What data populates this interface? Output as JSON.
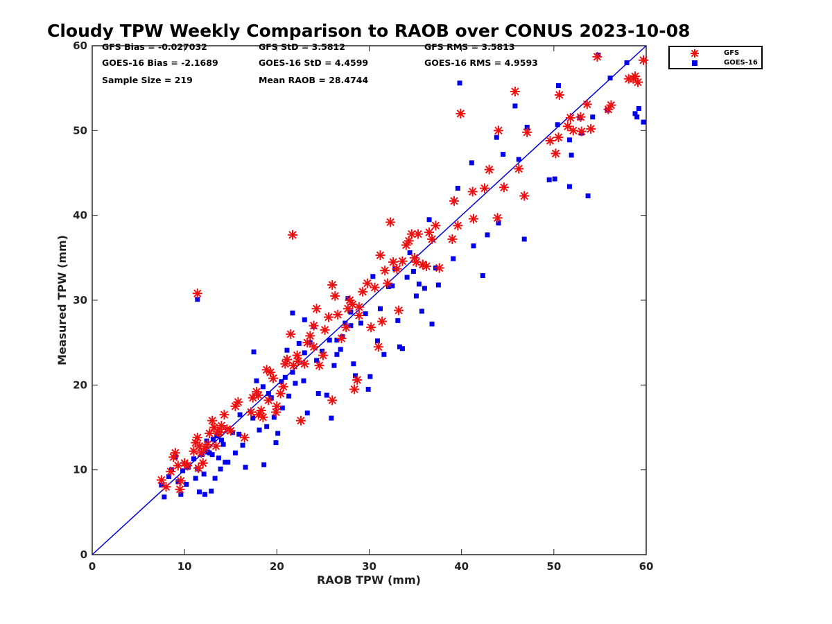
{
  "chart_data": {
    "type": "scatter",
    "title": "Cloudy TPW Weekly Comparison to RAOB over CONUS 2023-10-08",
    "xlabel": "RAOB TPW (mm)",
    "ylabel": "Measured TPW (mm)",
    "xlim": [
      0,
      60
    ],
    "ylim": [
      0,
      60
    ],
    "xticks": [
      0,
      10,
      20,
      30,
      40,
      50,
      60
    ],
    "yticks": [
      0,
      10,
      20,
      30,
      40,
      50,
      60
    ],
    "grid": false,
    "legend_position": "top-right outside",
    "reference_line": {
      "x": [
        0,
        60
      ],
      "y": [
        0,
        60
      ],
      "color": "#0000cc"
    },
    "stats": {
      "gfs_bias": "GFS Bias = -0.027032",
      "goes_bias": "GOES-16 Bias = -2.1689",
      "sample_size": "Sample Size = 219",
      "gfs_std": "GFS StD = 3.5812",
      "goes_std": "GOES-16 StD = 4.4599",
      "mean_raob": "Mean RAOB = 28.4744",
      "gfs_rms": "GFS RMS = 3.5813",
      "goes_rms": "GOES-16 RMS = 4.9593"
    },
    "series": [
      {
        "name": "GFS",
        "marker": "asterisk",
        "color": "#ee1111",
        "points": [
          [
            7.5,
            8.8
          ],
          [
            8.0,
            8.0
          ],
          [
            8.5,
            9.8
          ],
          [
            8.8,
            11.5
          ],
          [
            9.0,
            12.0
          ],
          [
            9.3,
            10.5
          ],
          [
            9.5,
            7.7
          ],
          [
            9.6,
            8.7
          ],
          [
            10.0,
            10.8
          ],
          [
            10.3,
            10.5
          ],
          [
            11.0,
            12.2
          ],
          [
            11.2,
            13.2
          ],
          [
            11.4,
            13.8
          ],
          [
            11.5,
            10.2
          ],
          [
            11.6,
            12.8
          ],
          [
            11.8,
            12.0
          ],
          [
            12.0,
            10.8
          ],
          [
            12.2,
            12.5
          ],
          [
            12.5,
            13.0
          ],
          [
            12.7,
            14.3
          ],
          [
            13.0,
            15.8
          ],
          [
            13.2,
            15.0
          ],
          [
            13.4,
            12.8
          ],
          [
            13.6,
            14.5
          ],
          [
            14.0,
            15.2
          ],
          [
            14.3,
            16.5
          ],
          [
            14.6,
            14.8
          ],
          [
            15.0,
            14.6
          ],
          [
            15.5,
            17.5
          ],
          [
            15.8,
            18.0
          ],
          [
            16.5,
            13.8
          ],
          [
            17.2,
            16.8
          ],
          [
            17.4,
            18.5
          ],
          [
            17.8,
            19.2
          ],
          [
            18.0,
            16.5
          ],
          [
            18.3,
            17.0
          ],
          [
            18.5,
            16.2
          ],
          [
            18.9,
            21.8
          ],
          [
            19.1,
            18.2
          ],
          [
            19.3,
            21.5
          ],
          [
            19.6,
            20.8
          ],
          [
            19.9,
            16.8
          ],
          [
            20.0,
            17.5
          ],
          [
            20.4,
            19.0
          ],
          [
            20.7,
            19.8
          ],
          [
            20.9,
            22.5
          ],
          [
            21.1,
            23.0
          ],
          [
            21.5,
            26.0
          ],
          [
            21.8,
            22.3
          ],
          [
            22.2,
            23.5
          ],
          [
            22.6,
            15.8
          ],
          [
            23.0,
            22.5
          ],
          [
            23.3,
            25.0
          ],
          [
            23.6,
            25.8
          ],
          [
            24.0,
            27.0
          ],
          [
            24.3,
            29.0
          ],
          [
            24.6,
            22.3
          ],
          [
            25.0,
            23.5
          ],
          [
            25.2,
            26.5
          ],
          [
            25.6,
            28.0
          ],
          [
            26.0,
            31.8
          ],
          [
            26.3,
            30.5
          ],
          [
            26.0,
            18.2
          ],
          [
            26.6,
            28.3
          ],
          [
            27.0,
            25.5
          ],
          [
            27.5,
            26.8
          ],
          [
            27.7,
            29.0
          ],
          [
            27.9,
            30.0
          ],
          [
            28.2,
            29.5
          ],
          [
            28.4,
            19.5
          ],
          [
            28.7,
            20.6
          ],
          [
            28.9,
            28.2
          ],
          [
            29.3,
            31.0
          ],
          [
            29.8,
            32.0
          ],
          [
            30.2,
            26.8
          ],
          [
            30.6,
            31.5
          ],
          [
            31.0,
            24.5
          ],
          [
            31.2,
            35.3
          ],
          [
            31.4,
            27.5
          ],
          [
            31.7,
            33.5
          ],
          [
            32.0,
            32.0
          ],
          [
            32.3,
            39.2
          ],
          [
            32.6,
            34.5
          ],
          [
            33.0,
            33.7
          ],
          [
            33.2,
            28.8
          ],
          [
            33.6,
            34.6
          ],
          [
            34.0,
            36.5
          ],
          [
            34.3,
            37.0
          ],
          [
            34.6,
            37.8
          ],
          [
            34.9,
            35.0
          ],
          [
            35.1,
            34.5
          ],
          [
            35.3,
            37.8
          ],
          [
            35.8,
            34.2
          ],
          [
            36.2,
            34.0
          ],
          [
            36.5,
            38.0
          ],
          [
            36.8,
            37.2
          ],
          [
            37.2,
            38.8
          ],
          [
            37.6,
            33.8
          ],
          [
            39.0,
            37.2
          ],
          [
            39.2,
            41.7
          ],
          [
            39.6,
            38.8
          ],
          [
            39.9,
            52.0
          ],
          [
            41.2,
            42.8
          ],
          [
            41.3,
            39.6
          ],
          [
            42.5,
            43.2
          ],
          [
            43.0,
            45.4
          ],
          [
            43.9,
            39.7
          ],
          [
            44.0,
            50.0
          ],
          [
            44.6,
            43.3
          ],
          [
            45.8,
            54.6
          ],
          [
            46.2,
            45.5
          ],
          [
            46.8,
            42.3
          ],
          [
            47.1,
            49.8
          ],
          [
            49.6,
            48.8
          ],
          [
            50.2,
            47.3
          ],
          [
            50.5,
            49.2
          ],
          [
            50.6,
            54.2
          ],
          [
            51.5,
            50.5
          ],
          [
            51.8,
            51.5
          ],
          [
            52.1,
            50.0
          ],
          [
            52.9,
            51.6
          ],
          [
            53.0,
            49.9
          ],
          [
            53.6,
            53.1
          ],
          [
            54.0,
            50.2
          ],
          [
            54.7,
            58.7
          ],
          [
            55.9,
            52.5
          ],
          [
            56.2,
            53.0
          ],
          [
            58.1,
            56.1
          ],
          [
            58.6,
            56.1
          ],
          [
            58.8,
            56.4
          ],
          [
            59.1,
            55.7
          ],
          [
            59.7,
            58.3
          ],
          [
            11.4,
            30.8
          ],
          [
            21.7,
            37.7
          ],
          [
            35.8,
            34.2
          ],
          [
            28.9,
            29.2
          ],
          [
            22.3,
            22.8
          ],
          [
            24.0,
            24.5
          ],
          [
            18.0,
            18.8
          ],
          [
            13.8,
            14.4
          ]
        ]
      },
      {
        "name": "GOES-16",
        "marker": "square",
        "color": "#0000ee",
        "points": [
          [
            7.5,
            8.2
          ],
          [
            7.8,
            6.8
          ],
          [
            8.3,
            9.2
          ],
          [
            8.6,
            10.0
          ],
          [
            9.0,
            11.5
          ],
          [
            9.3,
            8.6
          ],
          [
            9.6,
            7.1
          ],
          [
            9.8,
            9.9
          ],
          [
            10.2,
            8.3
          ],
          [
            10.4,
            10.3
          ],
          [
            11.0,
            11.3
          ],
          [
            11.2,
            9.0
          ],
          [
            11.4,
            10.1
          ],
          [
            11.6,
            7.4
          ],
          [
            11.9,
            11.8
          ],
          [
            12.1,
            9.5
          ],
          [
            12.2,
            7.1
          ],
          [
            12.4,
            13.4
          ],
          [
            12.7,
            12.0
          ],
          [
            12.9,
            7.5
          ],
          [
            13.1,
            13.6
          ],
          [
            13.3,
            9.0
          ],
          [
            13.5,
            14.0
          ],
          [
            13.7,
            11.4
          ],
          [
            13.9,
            10.1
          ],
          [
            14.2,
            13.0
          ],
          [
            14.4,
            10.9
          ],
          [
            14.7,
            10.9
          ],
          [
            15.2,
            14.4
          ],
          [
            15.5,
            12.0
          ],
          [
            15.9,
            14.2
          ],
          [
            16.3,
            12.9
          ],
          [
            16.6,
            10.3
          ],
          [
            17.4,
            16.1
          ],
          [
            17.5,
            23.9
          ],
          [
            17.8,
            20.5
          ],
          [
            18.1,
            14.7
          ],
          [
            18.6,
            10.6
          ],
          [
            18.9,
            15.1
          ],
          [
            19.1,
            19.0
          ],
          [
            19.4,
            18.5
          ],
          [
            19.7,
            16.2
          ],
          [
            19.9,
            13.2
          ],
          [
            20.1,
            14.3
          ],
          [
            20.6,
            17.3
          ],
          [
            20.9,
            20.9
          ],
          [
            21.1,
            24.1
          ],
          [
            21.3,
            18.7
          ],
          [
            21.7,
            28.5
          ],
          [
            22.0,
            20.2
          ],
          [
            22.4,
            24.9
          ],
          [
            22.9,
            20.5
          ],
          [
            23.0,
            27.7
          ],
          [
            23.3,
            16.7
          ],
          [
            23.6,
            25.0
          ],
          [
            24.0,
            26.9
          ],
          [
            24.3,
            22.9
          ],
          [
            24.5,
            19.0
          ],
          [
            24.9,
            24.0
          ],
          [
            25.4,
            18.8
          ],
          [
            25.7,
            25.3
          ],
          [
            25.9,
            16.1
          ],
          [
            26.2,
            22.3
          ],
          [
            26.5,
            23.6
          ],
          [
            26.9,
            24.2
          ],
          [
            27.1,
            25.7
          ],
          [
            27.4,
            27.3
          ],
          [
            27.7,
            30.2
          ],
          [
            28.0,
            28.6
          ],
          [
            28.3,
            22.5
          ],
          [
            28.5,
            21.1
          ],
          [
            29.1,
            27.3
          ],
          [
            29.6,
            28.4
          ],
          [
            29.9,
            19.5
          ],
          [
            30.1,
            21.0
          ],
          [
            30.4,
            32.8
          ],
          [
            30.9,
            25.2
          ],
          [
            31.2,
            29.0
          ],
          [
            31.6,
            23.6
          ],
          [
            32.1,
            31.6
          ],
          [
            32.8,
            33.7
          ],
          [
            33.1,
            27.6
          ],
          [
            33.3,
            24.5
          ],
          [
            33.6,
            24.3
          ],
          [
            34.1,
            32.7
          ],
          [
            34.4,
            35.6
          ],
          [
            34.8,
            33.4
          ],
          [
            35.1,
            30.5
          ],
          [
            35.4,
            31.9
          ],
          [
            35.7,
            28.7
          ],
          [
            36.0,
            31.4
          ],
          [
            36.5,
            39.5
          ],
          [
            36.8,
            27.2
          ],
          [
            37.2,
            33.8
          ],
          [
            37.5,
            31.8
          ],
          [
            39.1,
            34.9
          ],
          [
            39.6,
            43.2
          ],
          [
            39.8,
            55.6
          ],
          [
            41.1,
            46.2
          ],
          [
            41.3,
            36.4
          ],
          [
            42.3,
            32.9
          ],
          [
            42.8,
            37.7
          ],
          [
            43.8,
            49.2
          ],
          [
            44.0,
            39.1
          ],
          [
            44.5,
            47.2
          ],
          [
            45.8,
            52.9
          ],
          [
            46.2,
            46.6
          ],
          [
            46.8,
            37.2
          ],
          [
            47.1,
            50.4
          ],
          [
            49.5,
            44.2
          ],
          [
            50.1,
            44.3
          ],
          [
            50.4,
            50.7
          ],
          [
            50.5,
            55.3
          ],
          [
            51.7,
            48.9
          ],
          [
            51.9,
            47.1
          ],
          [
            51.7,
            43.4
          ],
          [
            52.8,
            51.5
          ],
          [
            53.0,
            49.7
          ],
          [
            53.7,
            42.3
          ],
          [
            54.2,
            51.6
          ],
          [
            54.8,
            58.9
          ],
          [
            56.1,
            56.2
          ],
          [
            55.8,
            52.4
          ],
          [
            57.9,
            58.0
          ],
          [
            58.8,
            52.0
          ],
          [
            59.0,
            51.6
          ],
          [
            59.2,
            52.6
          ],
          [
            59.7,
            51.0
          ],
          [
            11.4,
            30.1
          ],
          [
            21.7,
            21.5
          ],
          [
            12.5,
            12.1
          ],
          [
            13.0,
            11.8
          ],
          [
            14.0,
            13.5
          ],
          [
            16.0,
            16.5
          ],
          [
            18.5,
            19.8
          ],
          [
            20.5,
            20.4
          ],
          [
            23.0,
            23.8
          ],
          [
            26.5,
            25.3
          ],
          [
            28.0,
            27.0
          ],
          [
            32.5,
            31.7
          ]
        ]
      }
    ]
  }
}
